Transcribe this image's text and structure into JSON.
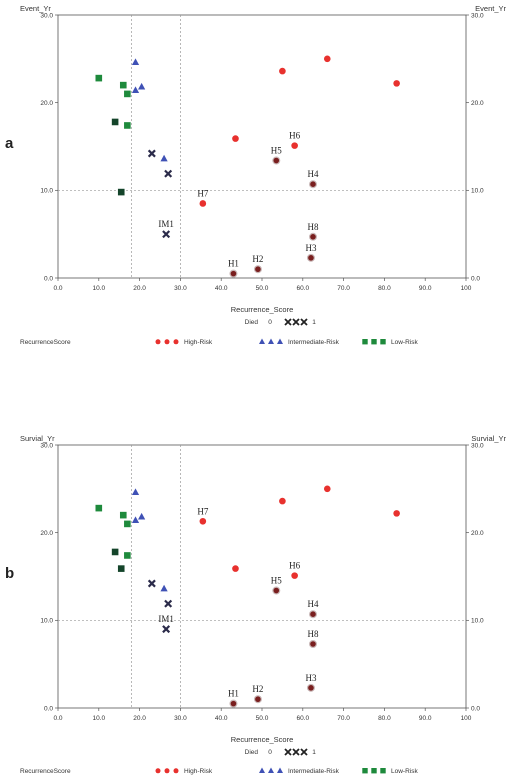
{
  "colors": {
    "high": "#e8312e",
    "intermediate": "#3f51b5",
    "low": "#1e8a3c",
    "died": "#7a1f1f",
    "dead_cross": "#2b2b4a",
    "ref": "#999999"
  },
  "legend": {
    "died_title": "Died",
    "died_0": "0",
    "died_1": "1",
    "score_title": "RecurrenceScore",
    "high": "High-Risk",
    "intermediate": "Intermediate-Risk",
    "low": "Low-Risk"
  },
  "chart_data": [
    {
      "panel_label": "a",
      "type": "scatter",
      "xlabel": "Recurrence_Score",
      "ylabel_left": "Event_Yr",
      "ylabel_right": "Event_Yr",
      "xlim": [
        0,
        100
      ],
      "ylim": [
        0,
        30
      ],
      "x_ticks": [
        "0.0",
        "10.0",
        "20.0",
        "30.0",
        "40.0",
        "50.0",
        "60.0",
        "70.0",
        "80.0",
        "90.0",
        "100"
      ],
      "y_ticks": [
        "0.0",
        "10.0",
        "20.0",
        "30.0"
      ],
      "ref_x": [
        18,
        30
      ],
      "ref_y": [
        10
      ],
      "points": [
        {
          "x": 10,
          "y": 22.8,
          "group": "low",
          "died": 0
        },
        {
          "x": 16,
          "y": 22.0,
          "group": "low",
          "died": 0
        },
        {
          "x": 17,
          "y": 21.0,
          "group": "low",
          "died": 0
        },
        {
          "x": 14,
          "y": 17.8,
          "group": "low",
          "died": 1
        },
        {
          "x": 17,
          "y": 17.4,
          "group": "low",
          "died": 0
        },
        {
          "x": 15.5,
          "y": 9.8,
          "group": "low",
          "died": 1
        },
        {
          "x": 19,
          "y": 24.6,
          "group": "intermediate",
          "died": 0
        },
        {
          "x": 19,
          "y": 21.4,
          "group": "intermediate",
          "died": 0
        },
        {
          "x": 20.5,
          "y": 21.8,
          "group": "intermediate",
          "died": 0
        },
        {
          "x": 23,
          "y": 14.2,
          "group": "intermediate",
          "died": 1
        },
        {
          "x": 26,
          "y": 13.6,
          "group": "intermediate",
          "died": 0
        },
        {
          "x": 27,
          "y": 11.9,
          "group": "intermediate",
          "died": 1
        },
        {
          "x": 26.5,
          "y": 5.0,
          "group": "intermediate",
          "died": 1,
          "label": "IM1"
        },
        {
          "x": 55,
          "y": 23.6,
          "group": "high",
          "died": 0
        },
        {
          "x": 66,
          "y": 25.0,
          "group": "high",
          "died": 0
        },
        {
          "x": 83,
          "y": 22.2,
          "group": "high",
          "died": 0
        },
        {
          "x": 43.5,
          "y": 15.9,
          "group": "high",
          "died": 0
        },
        {
          "x": 58,
          "y": 15.1,
          "group": "high",
          "died": 0,
          "label": "H6"
        },
        {
          "x": 53.5,
          "y": 13.4,
          "group": "high",
          "died": 1,
          "label": "H5"
        },
        {
          "x": 62.5,
          "y": 10.7,
          "group": "high",
          "died": 1,
          "label": "H4"
        },
        {
          "x": 35.5,
          "y": 8.5,
          "group": "high",
          "died": 0,
          "label": "H7"
        },
        {
          "x": 62.5,
          "y": 4.7,
          "group": "high",
          "died": 1,
          "label": "H8"
        },
        {
          "x": 62,
          "y": 2.3,
          "group": "high",
          "died": 1,
          "label": "H3"
        },
        {
          "x": 49,
          "y": 1.0,
          "group": "high",
          "died": 1,
          "label": "H2"
        },
        {
          "x": 43,
          "y": 0.5,
          "group": "high",
          "died": 1,
          "label": "H1"
        }
      ]
    },
    {
      "panel_label": "b",
      "type": "scatter",
      "xlabel": "Recurrence_Score",
      "ylabel_left": "Survial_Yr",
      "ylabel_right": "Survial_Yr",
      "xlim": [
        0,
        100
      ],
      "ylim": [
        0,
        30
      ],
      "x_ticks": [
        "0.0",
        "10.0",
        "20.0",
        "30.0",
        "40.0",
        "50.0",
        "60.0",
        "70.0",
        "80.0",
        "90.0",
        "100"
      ],
      "y_ticks": [
        "0.0",
        "10.0",
        "20.0",
        "30.0"
      ],
      "ref_x": [
        18,
        30
      ],
      "ref_y": [
        10
      ],
      "points": [
        {
          "x": 10,
          "y": 22.8,
          "group": "low",
          "died": 0
        },
        {
          "x": 16,
          "y": 22.0,
          "group": "low",
          "died": 0
        },
        {
          "x": 17,
          "y": 21.0,
          "group": "low",
          "died": 0
        },
        {
          "x": 14,
          "y": 17.8,
          "group": "low",
          "died": 1
        },
        {
          "x": 17,
          "y": 17.4,
          "group": "low",
          "died": 0
        },
        {
          "x": 15.5,
          "y": 15.9,
          "group": "low",
          "died": 1
        },
        {
          "x": 19,
          "y": 24.6,
          "group": "intermediate",
          "died": 0
        },
        {
          "x": 19,
          "y": 21.4,
          "group": "intermediate",
          "died": 0
        },
        {
          "x": 20.5,
          "y": 21.8,
          "group": "intermediate",
          "died": 0
        },
        {
          "x": 23,
          "y": 14.2,
          "group": "intermediate",
          "died": 1
        },
        {
          "x": 26,
          "y": 13.6,
          "group": "intermediate",
          "died": 0
        },
        {
          "x": 27,
          "y": 11.9,
          "group": "intermediate",
          "died": 1
        },
        {
          "x": 26.5,
          "y": 9.0,
          "group": "intermediate",
          "died": 1,
          "label": "IM1"
        },
        {
          "x": 55,
          "y": 23.6,
          "group": "high",
          "died": 0
        },
        {
          "x": 66,
          "y": 25.0,
          "group": "high",
          "died": 0
        },
        {
          "x": 83,
          "y": 22.2,
          "group": "high",
          "died": 0
        },
        {
          "x": 35.5,
          "y": 21.3,
          "group": "high",
          "died": 0,
          "label": "H7"
        },
        {
          "x": 43.5,
          "y": 15.9,
          "group": "high",
          "died": 0
        },
        {
          "x": 58,
          "y": 15.1,
          "group": "high",
          "died": 0,
          "label": "H6"
        },
        {
          "x": 53.5,
          "y": 13.4,
          "group": "high",
          "died": 1,
          "label": "H5"
        },
        {
          "x": 62.5,
          "y": 10.7,
          "group": "high",
          "died": 1,
          "label": "H4"
        },
        {
          "x": 62.5,
          "y": 7.3,
          "group": "high",
          "died": 1,
          "label": "H8"
        },
        {
          "x": 62,
          "y": 2.3,
          "group": "high",
          "died": 1,
          "label": "H3"
        },
        {
          "x": 49,
          "y": 1.0,
          "group": "high",
          "died": 1,
          "label": "H2"
        },
        {
          "x": 43,
          "y": 0.5,
          "group": "high",
          "died": 1,
          "label": "H1"
        }
      ]
    }
  ]
}
